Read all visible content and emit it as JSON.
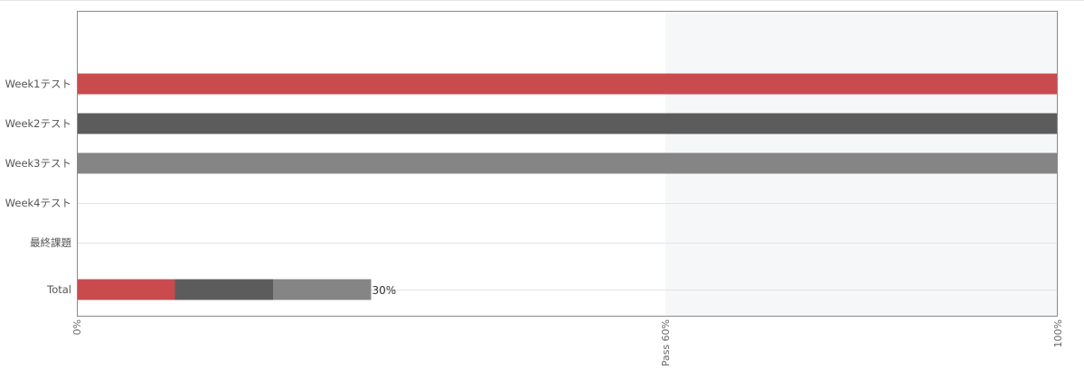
{
  "chart_data": {
    "type": "bar",
    "orientation": "horizontal",
    "stacked": true,
    "title": "",
    "xlabel": "",
    "ylabel": "",
    "xlim": [
      0,
      100
    ],
    "categories": [
      "Week1テスト",
      "Week2テスト",
      "Week3テスト",
      "Week4テスト",
      "最終課題"
    ],
    "series": [
      {
        "values": [
          100,
          100,
          100,
          0,
          0
        ],
        "color": "#c94b4e"
      },
      {
        "values": [
          0,
          0,
          0,
          0,
          0
        ],
        "color": "#5c5c5c"
      },
      {
        "values": [
          0,
          0,
          0,
          0,
          0
        ],
        "color": "#858585"
      }
    ],
    "category_bar_colors": [
      "#c94b4e",
      "#5c5c5c",
      "#858585",
      "#858585",
      "#858585"
    ],
    "total": {
      "label": "Total",
      "segments": [
        {
          "value": 10,
          "color": "#c94b4e"
        },
        {
          "value": 10,
          "color": "#5c5c5c"
        },
        {
          "value": 10,
          "color": "#858585"
        }
      ],
      "value_label": "30%"
    },
    "x_ticks": [
      {
        "value": 0,
        "label": "0%"
      },
      {
        "value": 60,
        "label": "Pass 60%"
      },
      {
        "value": 100,
        "label": "100%"
      }
    ],
    "pass_threshold": 60,
    "pass_region_color": "#f6f7f9",
    "grid": true,
    "legend": "none"
  }
}
